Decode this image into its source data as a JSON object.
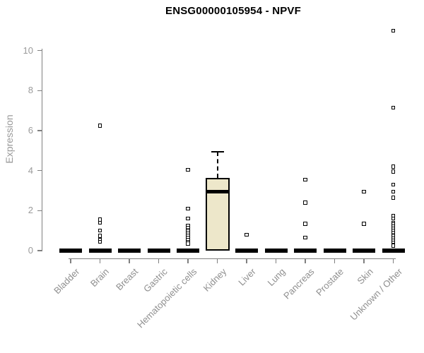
{
  "title": "ENSG00000105954 - NPVF",
  "colors": {
    "box_fill": "#ede7ca",
    "box_border": "#000000",
    "axis": "#808080",
    "tick_label_gray": "#9a9a9a",
    "title_color": "#000000",
    "background": "#ffffff"
  },
  "chart_data": {
    "type": "boxplot",
    "title": "ENSG00000105954 - NPVF",
    "xlabel": "",
    "ylabel": "Expression",
    "ylim": [
      0,
      11.1
    ],
    "yticks": [
      0,
      2,
      4,
      6,
      8,
      10
    ],
    "grid": false,
    "legend": "none",
    "categories": [
      "Bladder",
      "Brain",
      "Breast",
      "Gastric",
      "Hematopoietic cells",
      "Kidney",
      "Liver",
      "Lung",
      "Pancreas",
      "Prostate",
      "Skin",
      "Unknown / Other"
    ],
    "boxes": [
      {
        "category": "Bladder",
        "q1": 0,
        "median": 0,
        "q3": 0,
        "whisker_low": 0,
        "whisker_high": 0,
        "outliers": []
      },
      {
        "category": "Brain",
        "q1": 0,
        "median": 0,
        "q3": 0,
        "whisker_low": 0,
        "whisker_high": 0,
        "outliers": [
          6.25,
          1.55,
          1.4,
          1.0,
          0.75,
          0.55,
          0.45
        ]
      },
      {
        "category": "Breast",
        "q1": 0,
        "median": 0,
        "q3": 0,
        "whisker_low": 0,
        "whisker_high": 0,
        "outliers": []
      },
      {
        "category": "Gastric",
        "q1": 0,
        "median": 0,
        "q3": 0,
        "whisker_low": 0,
        "whisker_high": 0,
        "outliers": []
      },
      {
        "category": "Hematopoietic cells",
        "q1": 0,
        "median": 0,
        "q3": 0,
        "whisker_low": 0,
        "whisker_high": 0,
        "outliers": [
          4.05,
          2.1,
          1.6,
          1.25,
          1.15,
          1.05,
          0.95,
          0.85,
          0.75,
          0.65,
          0.55,
          0.45,
          0.35
        ]
      },
      {
        "category": "Kidney",
        "q1": 0,
        "median": 2.95,
        "q3": 3.65,
        "whisker_low": 0,
        "whisker_high": 4.95,
        "outliers": []
      },
      {
        "category": "Liver",
        "q1": 0,
        "median": 0,
        "q3": 0,
        "whisker_low": 0,
        "whisker_high": 0,
        "outliers": [
          0.8
        ]
      },
      {
        "category": "Lung",
        "q1": 0,
        "median": 0,
        "q3": 0,
        "whisker_low": 0,
        "whisker_high": 0,
        "outliers": []
      },
      {
        "category": "Pancreas",
        "q1": 0,
        "median": 0,
        "q3": 0,
        "whisker_low": 0,
        "whisker_high": 0,
        "outliers": [
          3.55,
          2.4,
          1.35,
          0.65
        ]
      },
      {
        "category": "Prostate",
        "q1": 0,
        "median": 0,
        "q3": 0,
        "whisker_low": 0,
        "whisker_high": 0,
        "outliers": []
      },
      {
        "category": "Skin",
        "q1": 0,
        "median": 0,
        "q3": 0,
        "whisker_low": 0,
        "whisker_high": 0,
        "outliers": [
          2.95,
          1.35
        ]
      },
      {
        "category": "Unknown / Other",
        "q1": 0,
        "median": 0,
        "q3": 0,
        "whisker_low": 0,
        "whisker_high": 0,
        "outliers": [
          11.0,
          7.15,
          4.2,
          3.95,
          3.3,
          2.95,
          2.65,
          1.75,
          1.6,
          1.4,
          1.3,
          1.2,
          1.1,
          1.0,
          0.9,
          0.8,
          0.7,
          0.6,
          0.5,
          0.4,
          0.3,
          0.25
        ]
      }
    ]
  }
}
